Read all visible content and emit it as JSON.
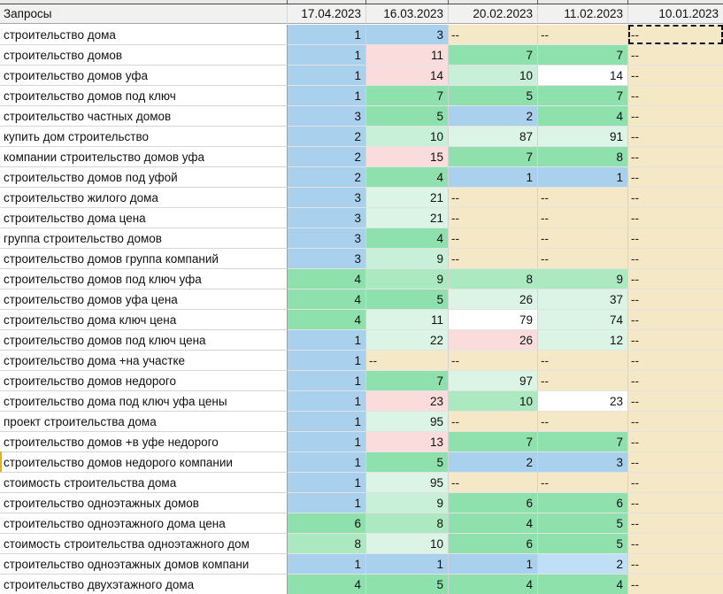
{
  "header": {
    "query_label": "Запросы",
    "dates": [
      "17.04.2023",
      "16.03.2023",
      "20.02.2023",
      "11.02.2023",
      "10.01.2023"
    ]
  },
  "palette": {
    "blue": "#A9D1EE",
    "blue_light": "#BEDFF5",
    "green1": "#8EE0AD",
    "green2": "#ACE8C0",
    "green2l": "#C8EFD7",
    "green3": "#DCF4E5",
    "pink": "#F9DCDB",
    "tan": "#F5E8C6",
    "white": "#FFFFFF"
  },
  "marker_color": "#EDB200",
  "no_data_symbol": "--",
  "rows": [
    {
      "query": "строительство дома",
      "cells": [
        {
          "v": "1",
          "c": "blue"
        },
        {
          "v": "3",
          "c": "blue"
        },
        {
          "v": "--",
          "c": "tan"
        },
        {
          "v": "--",
          "c": "tan"
        },
        {
          "v": "--",
          "c": "tan",
          "selected": true
        }
      ]
    },
    {
      "query": "строительство домов",
      "cells": [
        {
          "v": "1",
          "c": "blue"
        },
        {
          "v": "11",
          "c": "pink"
        },
        {
          "v": "7",
          "c": "green1"
        },
        {
          "v": "7",
          "c": "green1"
        },
        {
          "v": "--",
          "c": "tan"
        }
      ]
    },
    {
      "query": "строительство домов уфа",
      "cells": [
        {
          "v": "1",
          "c": "blue"
        },
        {
          "v": "14",
          "c": "pink"
        },
        {
          "v": "10",
          "c": "green2l"
        },
        {
          "v": "14",
          "c": "white"
        },
        {
          "v": "--",
          "c": "tan"
        }
      ]
    },
    {
      "query": "строительство домов под ключ",
      "cells": [
        {
          "v": "1",
          "c": "blue"
        },
        {
          "v": "7",
          "c": "green1"
        },
        {
          "v": "5",
          "c": "green1"
        },
        {
          "v": "7",
          "c": "green1"
        },
        {
          "v": "--",
          "c": "tan"
        }
      ]
    },
    {
      "query": "строительство частных домов",
      "cells": [
        {
          "v": "3",
          "c": "blue"
        },
        {
          "v": "5",
          "c": "green1"
        },
        {
          "v": "2",
          "c": "blue"
        },
        {
          "v": "4",
          "c": "green1"
        },
        {
          "v": "--",
          "c": "tan"
        }
      ]
    },
    {
      "query": "купить дом строительство",
      "cells": [
        {
          "v": "2",
          "c": "blue"
        },
        {
          "v": "10",
          "c": "green2l"
        },
        {
          "v": "87",
          "c": "green3"
        },
        {
          "v": "91",
          "c": "green3"
        },
        {
          "v": "--",
          "c": "tan"
        }
      ]
    },
    {
      "query": "компании строительство домов уфа",
      "cells": [
        {
          "v": "2",
          "c": "blue"
        },
        {
          "v": "15",
          "c": "pink"
        },
        {
          "v": "7",
          "c": "green1"
        },
        {
          "v": "8",
          "c": "green1"
        },
        {
          "v": "--",
          "c": "tan"
        }
      ]
    },
    {
      "query": "строительство домов под уфой",
      "cells": [
        {
          "v": "2",
          "c": "blue"
        },
        {
          "v": "4",
          "c": "green1"
        },
        {
          "v": "1",
          "c": "blue"
        },
        {
          "v": "1",
          "c": "blue"
        },
        {
          "v": "--",
          "c": "tan"
        }
      ]
    },
    {
      "query": "строительство жилого дома",
      "cells": [
        {
          "v": "3",
          "c": "blue"
        },
        {
          "v": "21",
          "c": "green3"
        },
        {
          "v": "--",
          "c": "tan"
        },
        {
          "v": "--",
          "c": "tan"
        },
        {
          "v": "--",
          "c": "tan"
        }
      ]
    },
    {
      "query": "строительство дома цена",
      "cells": [
        {
          "v": "3",
          "c": "blue"
        },
        {
          "v": "21",
          "c": "green3"
        },
        {
          "v": "--",
          "c": "tan"
        },
        {
          "v": "--",
          "c": "tan"
        },
        {
          "v": "--",
          "c": "tan"
        }
      ]
    },
    {
      "query": "группа строительство домов",
      "cells": [
        {
          "v": "3",
          "c": "blue"
        },
        {
          "v": "4",
          "c": "green1"
        },
        {
          "v": "--",
          "c": "tan"
        },
        {
          "v": "--",
          "c": "tan"
        },
        {
          "v": "--",
          "c": "tan"
        }
      ]
    },
    {
      "query": "строительство домов группа компаний",
      "cells": [
        {
          "v": "3",
          "c": "blue"
        },
        {
          "v": "9",
          "c": "green2l"
        },
        {
          "v": "--",
          "c": "tan"
        },
        {
          "v": "--",
          "c": "tan"
        },
        {
          "v": "--",
          "c": "tan"
        }
      ]
    },
    {
      "query": "строительство домов под ключ уфа",
      "cells": [
        {
          "v": "4",
          "c": "green1"
        },
        {
          "v": "9",
          "c": "green2"
        },
        {
          "v": "8",
          "c": "green2"
        },
        {
          "v": "9",
          "c": "green2"
        },
        {
          "v": "--",
          "c": "tan"
        }
      ]
    },
    {
      "query": "строительство домов уфа цена",
      "cells": [
        {
          "v": "4",
          "c": "green1"
        },
        {
          "v": "5",
          "c": "green1"
        },
        {
          "v": "26",
          "c": "green3"
        },
        {
          "v": "37",
          "c": "green3"
        },
        {
          "v": "--",
          "c": "tan"
        }
      ]
    },
    {
      "query": "строительство дома ключ цена",
      "cells": [
        {
          "v": "4",
          "c": "green1"
        },
        {
          "v": "11",
          "c": "green3"
        },
        {
          "v": "79",
          "c": "white"
        },
        {
          "v": "74",
          "c": "green3"
        },
        {
          "v": "--",
          "c": "tan"
        }
      ]
    },
    {
      "query": "строительство домов под ключ цена",
      "cells": [
        {
          "v": "1",
          "c": "blue"
        },
        {
          "v": "22",
          "c": "green3"
        },
        {
          "v": "26",
          "c": "pink"
        },
        {
          "v": "12",
          "c": "green3"
        },
        {
          "v": "--",
          "c": "tan"
        }
      ]
    },
    {
      "query": "строительство дома +на участке",
      "cells": [
        {
          "v": "1",
          "c": "blue"
        },
        {
          "v": "--",
          "c": "tan"
        },
        {
          "v": "--",
          "c": "tan"
        },
        {
          "v": "--",
          "c": "tan"
        },
        {
          "v": "--",
          "c": "tan"
        }
      ]
    },
    {
      "query": "строительство домов недорого",
      "cells": [
        {
          "v": "1",
          "c": "blue"
        },
        {
          "v": "7",
          "c": "green1"
        },
        {
          "v": "97",
          "c": "green3"
        },
        {
          "v": "--",
          "c": "tan"
        },
        {
          "v": "--",
          "c": "tan"
        }
      ]
    },
    {
      "query": "строительство дома под ключ уфа цены",
      "cells": [
        {
          "v": "1",
          "c": "blue"
        },
        {
          "v": "23",
          "c": "pink"
        },
        {
          "v": "10",
          "c": "green2"
        },
        {
          "v": "23",
          "c": "white"
        },
        {
          "v": "--",
          "c": "tan"
        }
      ]
    },
    {
      "query": "проект строительства дома",
      "cells": [
        {
          "v": "1",
          "c": "blue"
        },
        {
          "v": "95",
          "c": "green3"
        },
        {
          "v": "--",
          "c": "tan"
        },
        {
          "v": "--",
          "c": "tan"
        },
        {
          "v": "--",
          "c": "tan"
        }
      ]
    },
    {
      "query": "строительство домов +в уфе недорого",
      "cells": [
        {
          "v": "1",
          "c": "blue"
        },
        {
          "v": "13",
          "c": "pink"
        },
        {
          "v": "7",
          "c": "green1"
        },
        {
          "v": "7",
          "c": "green1"
        },
        {
          "v": "--",
          "c": "tan"
        }
      ]
    },
    {
      "query": "строительство домов недорого компании",
      "marker": true,
      "cells": [
        {
          "v": "1",
          "c": "blue"
        },
        {
          "v": "5",
          "c": "green1"
        },
        {
          "v": "2",
          "c": "blue"
        },
        {
          "v": "3",
          "c": "blue"
        },
        {
          "v": "--",
          "c": "tan"
        }
      ]
    },
    {
      "query": "стоимость строительства дома",
      "cells": [
        {
          "v": "1",
          "c": "blue"
        },
        {
          "v": "95",
          "c": "green3"
        },
        {
          "v": "--",
          "c": "tan"
        },
        {
          "v": "--",
          "c": "tan"
        },
        {
          "v": "--",
          "c": "tan"
        }
      ]
    },
    {
      "query": "строительство одноэтажных домов",
      "cells": [
        {
          "v": "1",
          "c": "blue"
        },
        {
          "v": "9",
          "c": "green2l"
        },
        {
          "v": "6",
          "c": "green1"
        },
        {
          "v": "6",
          "c": "green1"
        },
        {
          "v": "--",
          "c": "tan"
        }
      ]
    },
    {
      "query": "строительство одноэтажного дома цена",
      "cells": [
        {
          "v": "6",
          "c": "green1"
        },
        {
          "v": "8",
          "c": "green2"
        },
        {
          "v": "4",
          "c": "green1"
        },
        {
          "v": "5",
          "c": "green1"
        },
        {
          "v": "--",
          "c": "tan"
        }
      ]
    },
    {
      "query": "стоимость строительства одноэтажного дом",
      "cells": [
        {
          "v": "8",
          "c": "green2"
        },
        {
          "v": "10",
          "c": "green3"
        },
        {
          "v": "6",
          "c": "green1"
        },
        {
          "v": "5",
          "c": "green1"
        },
        {
          "v": "--",
          "c": "tan"
        }
      ]
    },
    {
      "query": "строительство одноэтажных домов компани",
      "cells": [
        {
          "v": "1",
          "c": "blue"
        },
        {
          "v": "1",
          "c": "blue"
        },
        {
          "v": "1",
          "c": "blue"
        },
        {
          "v": "2",
          "c": "blue_light"
        },
        {
          "v": "--",
          "c": "tan"
        }
      ]
    },
    {
      "query": "строительство двухэтажного дома",
      "cells": [
        {
          "v": "4",
          "c": "green1"
        },
        {
          "v": "5",
          "c": "green1"
        },
        {
          "v": "4",
          "c": "green1"
        },
        {
          "v": "4",
          "c": "green1"
        },
        {
          "v": "--",
          "c": "tan"
        }
      ]
    }
  ]
}
